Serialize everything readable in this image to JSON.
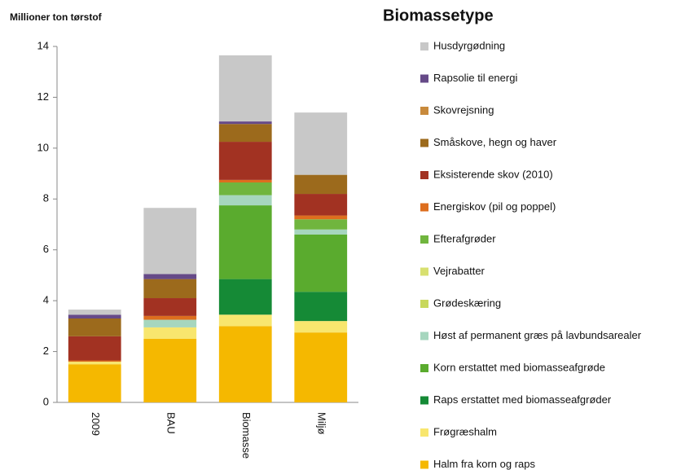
{
  "chart_data": {
    "type": "stacked_bar",
    "y_axis_label": "Millioner ton tørstof",
    "legend_title": "Biomassetype",
    "categories": [
      "2009",
      "BAU",
      "Biomasse",
      "Miljø"
    ],
    "ylim": [
      0,
      14
    ],
    "yticks": [
      0,
      2,
      4,
      6,
      8,
      10,
      12,
      14
    ],
    "grid": false,
    "legend": "right",
    "series": [
      {
        "name": "Halm fra korn og raps",
        "color": "#f5b800",
        "values": [
          1.5,
          2.5,
          3.0,
          2.75
        ]
      },
      {
        "name": "Frøgræshalm",
        "color": "#f8e66e",
        "values": [
          0.1,
          0.45,
          0.45,
          0.45
        ]
      },
      {
        "name": "Raps erstattet med biomasseafgrøder",
        "color": "#158a36",
        "values": [
          0,
          0,
          1.4,
          1.15
        ]
      },
      {
        "name": "Korn erstattet med biomasseafgrøde",
        "color": "#5aab2e",
        "values": [
          0,
          0,
          2.9,
          2.25
        ]
      },
      {
        "name": "Høst af permanent græs på lavbundsarealer",
        "color": "#a6d6be",
        "values": [
          0,
          0.3,
          0.4,
          0.2
        ]
      },
      {
        "name": "Grødeskæring",
        "color": "#c8d85c",
        "values": [
          0,
          0,
          0,
          0
        ]
      },
      {
        "name": "Vejrabatter",
        "color": "#d8e070",
        "values": [
          0,
          0,
          0,
          0
        ]
      },
      {
        "name": "Efterafgrøder",
        "color": "#70b53e",
        "values": [
          0,
          0,
          0.5,
          0.4
        ]
      },
      {
        "name": "Energiskov (pil og poppel)",
        "color": "#dd6e1e",
        "values": [
          0.05,
          0.15,
          0.1,
          0.15
        ]
      },
      {
        "name": "Eksisterende skov (2010)",
        "color": "#a23222",
        "values": [
          0.95,
          0.7,
          1.5,
          0.85
        ]
      },
      {
        "name": "Småskove, hegn og haver",
        "color": "#9c6a1c",
        "values": [
          0.7,
          0.75,
          0.7,
          0.75
        ]
      },
      {
        "name": "Skovrejsning",
        "color": "#c88a3c",
        "values": [
          0,
          0,
          0,
          0
        ]
      },
      {
        "name": "Rapsolie til energi",
        "color": "#664a88",
        "values": [
          0.15,
          0.2,
          0.1,
          0
        ]
      },
      {
        "name": "Husdyrgødning",
        "color": "#c8c8c8",
        "values": [
          0.2,
          2.6,
          2.6,
          2.45
        ]
      }
    ]
  }
}
